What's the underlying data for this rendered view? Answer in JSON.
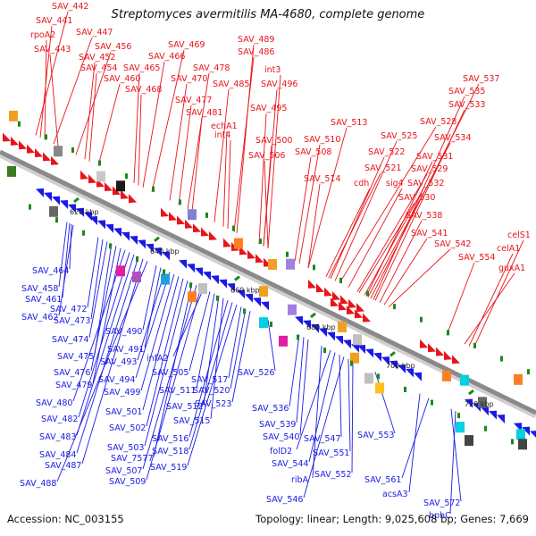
{
  "title": "Streptomyces avermitilis MA-4680, complete genome",
  "footer": {
    "accession": "Accession: NC_003155",
    "topology": "Topology: linear; Length: 9,025,608 bp; Genes: 7,669"
  },
  "colors": {
    "forward": "#e8141a",
    "reverse": "#1a1ae6",
    "backbone": "#8a8a8a",
    "kbp_tick": "#1a8a1a"
  },
  "kbp_markers": [
    "620 kbp",
    "640 kbp",
    "660 kbp",
    "680 kbp",
    "700 kbp",
    "720 kbp"
  ],
  "top_labels": [
    "SAV_442",
    "SAV_441",
    "rpoA2",
    "SAV_447",
    "SAV_443",
    "SAV_456",
    "SAV_452",
    "SAV_454",
    "SAV_460",
    "SAV_469",
    "SAV_466",
    "SAV_465",
    "SAV_468",
    "SAV_470",
    "SAV_489",
    "SAV_486",
    "SAV_478",
    "SAV_485",
    "SAV_477",
    "SAV_481",
    "int3",
    "SAV_496",
    "SAV_495",
    "echA1",
    "int4",
    "SAV_500",
    "SAV_506",
    "SAV_513",
    "SAV_510",
    "SAV_508",
    "SAV_514",
    "SAV_528",
    "SAV_525",
    "SAV_522",
    "SAV_521",
    "cdh",
    "sig4",
    "SAV_529",
    "SAV_530",
    "SAV_532",
    "SAV_531",
    "SAV_534",
    "SAV_537",
    "SAV_535",
    "SAV_533",
    "SAV_538",
    "SAV_541",
    "SAV_542",
    "SAV_554",
    "celS1",
    "celA1",
    "guxA1"
  ],
  "bottom_labels": [
    "SAV_464",
    "SAV_458",
    "SAV_461",
    "SAV_462",
    "SAV_472",
    "SAV_473",
    "SAV_474",
    "SAV_475",
    "SAV_476",
    "SAV_479",
    "SAV_480",
    "SAV_482",
    "SAV_483",
    "SAV_484",
    "SAV_487",
    "SAV_488",
    "SAV_490",
    "SAV_491",
    "SAV_493",
    "SAV_494",
    "SAV_499",
    "SAV_501",
    "SAV_502",
    "SAV_503",
    "SAV_7577",
    "SAV_507",
    "SAV_509",
    "infA2",
    "SAV_505",
    "SAV_511",
    "SAV_512",
    "SAV_515",
    "SAV_516",
    "SAV_518",
    "SAV_519",
    "SAV_517",
    "SAV_520",
    "SAV_523",
    "SAV_526",
    "SAV_536",
    "SAV_539",
    "SAV_540",
    "SAV_547",
    "folD2",
    "SAV_544",
    "SAV_551",
    "SAV_552",
    "ribA",
    "SAV_546",
    "SAV_553",
    "SAV_561",
    "acsA3",
    "bphC",
    "SAV_572"
  ]
}
